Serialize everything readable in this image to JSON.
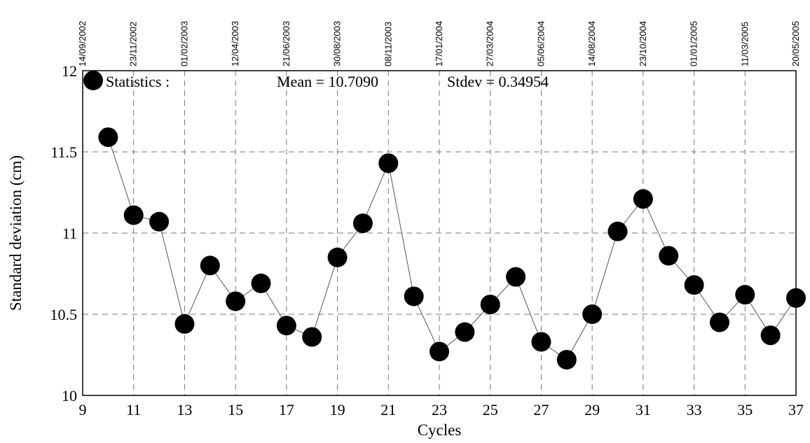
{
  "chart_data": {
    "type": "scatter",
    "title": "",
    "xlabel": "Cycles",
    "ylabel": "Standard deviation (cm)",
    "xlim": [
      9,
      37
    ],
    "ylim": [
      10,
      12
    ],
    "grid": true,
    "x_ticks": [
      9,
      11,
      13,
      15,
      17,
      19,
      21,
      23,
      25,
      27,
      29,
      31,
      33,
      35,
      37
    ],
    "x_tick_labels": [
      "9",
      "11",
      "13",
      "15",
      "17",
      "19",
      "21",
      "23",
      "25",
      "27",
      "29",
      "31",
      "33",
      "35",
      "37"
    ],
    "y_ticks": [
      10,
      10.5,
      11,
      11.5,
      12
    ],
    "y_tick_labels": [
      "10",
      "10.5",
      "11",
      "11.5",
      "12"
    ],
    "top_axis": {
      "ticks": [
        9,
        11,
        13,
        15,
        17,
        19,
        21,
        23,
        25,
        27,
        29,
        31,
        33,
        35,
        37
      ],
      "labels": [
        "14/09/2002",
        "23/11/2002",
        "01/02/2003",
        "12/04/2003",
        "21/06/2003",
        "30/08/2003",
        "08/11/2003",
        "17/01/2004",
        "27/03/2004",
        "05/06/2004",
        "14/08/2004",
        "23/10/2004",
        "01/01/2005",
        "11/03/2005",
        "20/05/2005"
      ]
    },
    "legend": {
      "label": "Statistics :",
      "mean_text": "Mean = 10.7090",
      "stdev_text": "Stdev = 0.34954",
      "placement": "top-left"
    },
    "series": [
      {
        "x": [
          10,
          11,
          12,
          13,
          14,
          15,
          16,
          17,
          18,
          19,
          20,
          21,
          22,
          23,
          24,
          25,
          26,
          27,
          28,
          29,
          30,
          31,
          32,
          33,
          34,
          35,
          36,
          37
        ],
        "y": [
          11.59,
          11.11,
          11.07,
          10.44,
          10.8,
          10.58,
          10.69,
          10.43,
          10.36,
          10.85,
          11.06,
          11.43,
          10.61,
          10.27,
          10.39,
          10.56,
          10.73,
          10.33,
          10.22,
          10.5,
          11.01,
          11.21,
          10.86,
          10.68,
          10.45,
          10.62,
          10.37,
          10.6
        ]
      }
    ],
    "colors": {
      "marker": "#000000",
      "line": "#555555",
      "grid": "#777777"
    }
  }
}
